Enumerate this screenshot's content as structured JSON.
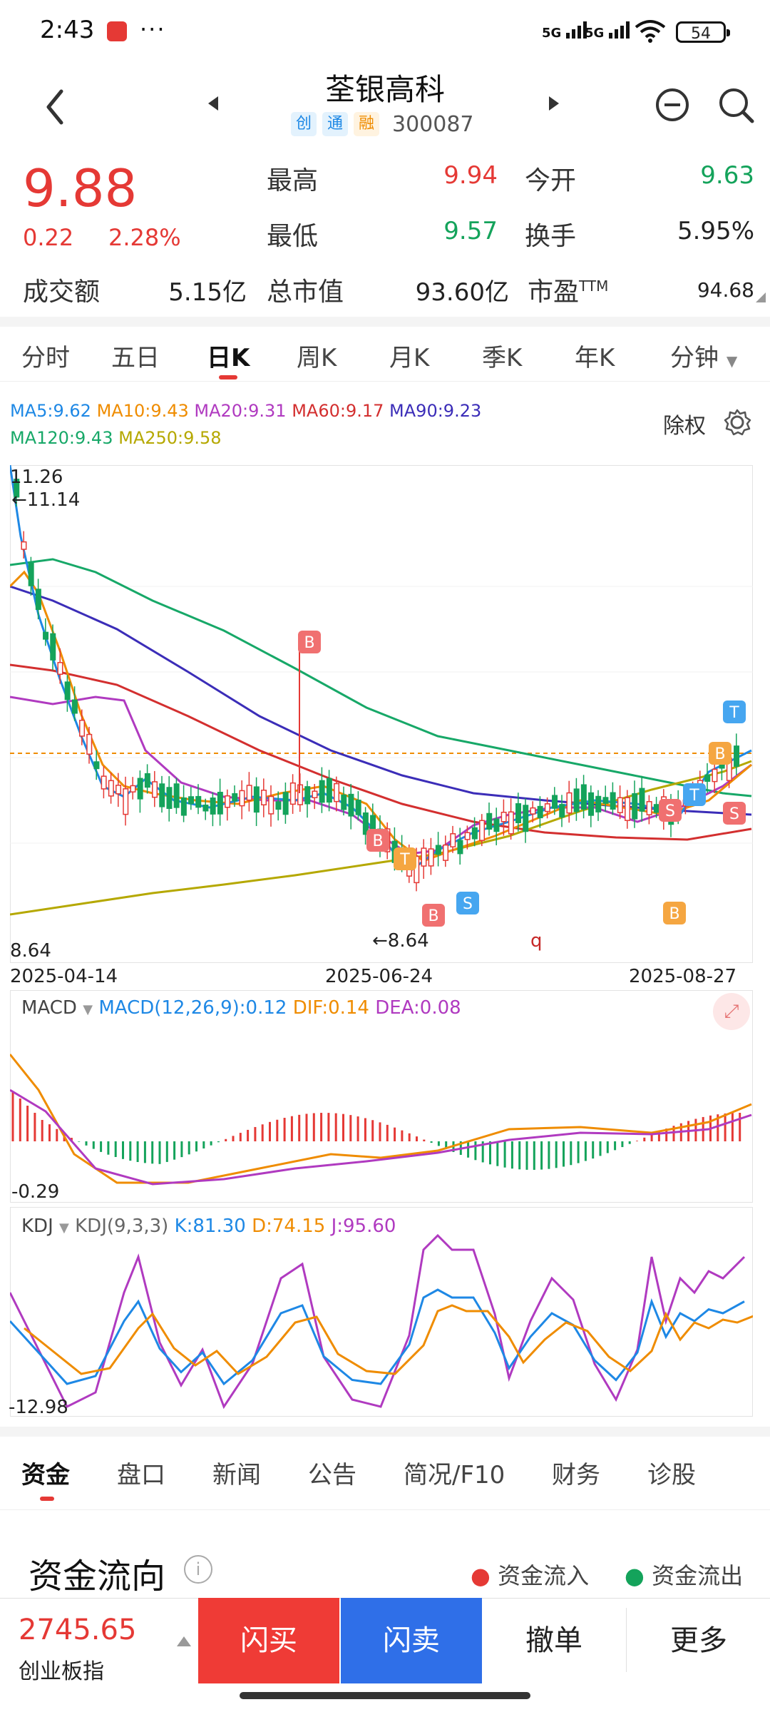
{
  "status": {
    "time": "2:43",
    "dots": "···",
    "net1": "5G",
    "net2": "5G",
    "battery": "54"
  },
  "header": {
    "title": "荃银高科",
    "tags": [
      "创",
      "通",
      "融"
    ],
    "code": "300087"
  },
  "quote": {
    "price": "9.88",
    "change": "0.22",
    "change_pct": "2.28%",
    "high_label": "最高",
    "high": "9.94",
    "open_label": "今开",
    "open": "9.63",
    "low_label": "最低",
    "low": "9.57",
    "turnover_label": "换手",
    "turnover": "5.95%",
    "amount_label": "成交额",
    "amount": "5.15亿",
    "mktcap_label": "总市值",
    "mktcap": "93.60亿",
    "pe_label": "市盈",
    "pe_sup": "TTM",
    "pe": "94.68"
  },
  "period_tabs": [
    "分时",
    "五日",
    "日K",
    "周K",
    "月K",
    "季K",
    "年K",
    "分钟"
  ],
  "ma": {
    "ma5": "MA5:9.62",
    "ma10": "MA10:9.43",
    "ma20": "MA20:9.31",
    "ma60": "MA60:9.17",
    "ma90": "MA90:9.23",
    "ma120": "MA120:9.43",
    "ma250": "MA250:9.58",
    "colors": {
      "ma5": "#1e88e5",
      "ma10": "#ef8c00",
      "ma20": "#b03ac0",
      "ma60": "#d32f2f",
      "ma90": "#3b2db8",
      "ma120": "#17a868",
      "ma250": "#b5a800"
    }
  },
  "adjust_label": "除权",
  "kchart": {
    "y_top": "11.26",
    "y_bottom": "8.64",
    "max_marker": "11.14",
    "min_marker": "8.64",
    "dates": [
      "2025-04-14",
      "2025-06-24",
      "2025-08-27"
    ],
    "stray_label": "q",
    "signals": [
      "B",
      "B",
      "B",
      "S",
      "S",
      "S",
      "T",
      "T",
      "T",
      "B",
      "B"
    ]
  },
  "macd": {
    "name": "MACD",
    "params": "MACD(12,26,9):0.12",
    "dif": "DIF:0.14",
    "dea": "DEA:0.08",
    "low": "-0.29"
  },
  "kdj": {
    "name": "KDJ",
    "params": "KDJ(9,3,3)",
    "k": "K:81.30",
    "d": "D:74.15",
    "j": "J:95.60",
    "low": "-12.98"
  },
  "bottom_tabs": [
    "资金",
    "盘口",
    "新闻",
    "公告",
    "简况/F10",
    "财务",
    "诊股"
  ],
  "flow": {
    "title": "资金流向",
    "inflow": "资金流入",
    "outflow": "资金流出"
  },
  "index": {
    "value": "2745.65",
    "name": "创业板指"
  },
  "actions": {
    "buy": "闪买",
    "sell": "闪卖",
    "cancel": "撤单",
    "more": "更多"
  }
}
